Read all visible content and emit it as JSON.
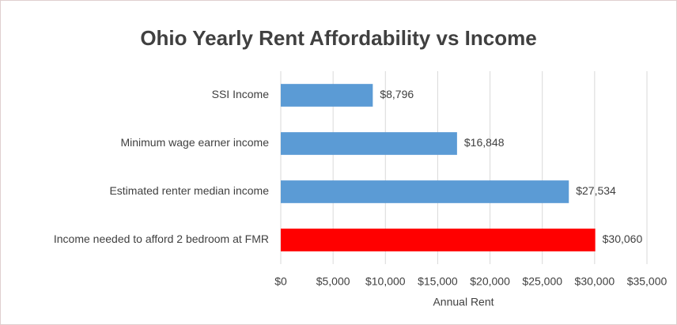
{
  "chart_data": {
    "type": "barh",
    "title": "Ohio Yearly Rent Affordability vs Income",
    "categories": [
      "SSI Income",
      "Minimum wage earner income",
      "Estimated renter median income",
      "Income needed to afford 2 bedroom at FMR"
    ],
    "values": [
      8796,
      16848,
      27534,
      30060
    ],
    "value_labels": [
      "$8,796",
      "$16,848",
      "$27,534",
      "$30,060"
    ],
    "colors": [
      "#5b9bd5",
      "#5b9bd5",
      "#5b9bd5",
      "#ff0000"
    ],
    "xlabel": "Annual Rent",
    "xlim": [
      0,
      35000
    ],
    "xticks": [
      {
        "value": 0,
        "label": "$0"
      },
      {
        "value": 5000,
        "label": "$5,000"
      },
      {
        "value": 10000,
        "label": "$10,000"
      },
      {
        "value": 15000,
        "label": "$15,000"
      },
      {
        "value": 20000,
        "label": "$20,000"
      },
      {
        "value": 25000,
        "label": "$25,000"
      },
      {
        "value": 30000,
        "label": "$30,000"
      },
      {
        "value": 35000,
        "label": "$35,000"
      }
    ],
    "grid": true
  }
}
